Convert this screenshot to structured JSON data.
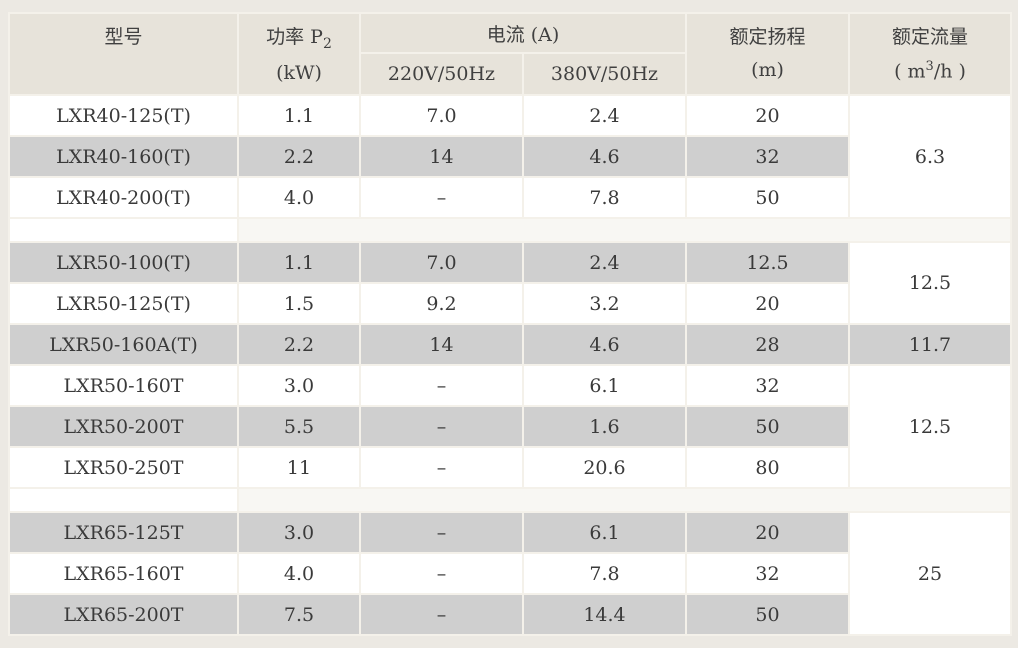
{
  "header": {
    "model": "型号",
    "power_label": "功率 P",
    "power_sub": "2",
    "power_unit": "(kW)",
    "current": "电流 (A)",
    "current_220": "220V/50Hz",
    "current_380": "380V/50Hz",
    "head_label": "额定扬程",
    "head_unit": "(m)",
    "flow_label": "额定流量",
    "flow_unit_open": "( m",
    "flow_unit_sup": "3",
    "flow_unit_close": "/h )"
  },
  "rows": [
    {
      "model": "LXR40-125(T)",
      "power": "1.1",
      "i220": "7.0",
      "i380": "2.4",
      "head": "20"
    },
    {
      "model": "LXR40-160(T)",
      "power": "2.2",
      "i220": "14",
      "i380": "4.6",
      "head": "32"
    },
    {
      "model": "LXR40-200(T)",
      "power": "4.0",
      "i220": "–",
      "i380": "7.8",
      "head": "50"
    },
    {
      "model": "LXR50-100(T)",
      "power": "1.1",
      "i220": "7.0",
      "i380": "2.4",
      "head": "12.5"
    },
    {
      "model": "LXR50-125(T)",
      "power": "1.5",
      "i220": "9.2",
      "i380": "3.2",
      "head": "20"
    },
    {
      "model": "LXR50-160A(T)",
      "power": "2.2",
      "i220": "14",
      "i380": "4.6",
      "head": "28"
    },
    {
      "model": "LXR50-160T",
      "power": "3.0",
      "i220": "–",
      "i380": "6.1",
      "head": "32"
    },
    {
      "model": "LXR50-200T",
      "power": "5.5",
      "i220": "–",
      "i380": "1.6",
      "head": "50"
    },
    {
      "model": "LXR50-250T",
      "power": "11",
      "i220": "–",
      "i380": "20.6",
      "head": "80"
    },
    {
      "model": "LXR65-125T",
      "power": "3.0",
      "i220": "–",
      "i380": "6.1",
      "head": "20"
    },
    {
      "model": "LXR65-160T",
      "power": "4.0",
      "i220": "–",
      "i380": "7.8",
      "head": "32"
    },
    {
      "model": "LXR65-200T",
      "power": "7.5",
      "i220": "–",
      "i380": "14.4",
      "head": "50"
    }
  ],
  "flows": {
    "g1": "6.3",
    "g2a": "12.5",
    "g2b": "11.7",
    "g2c": "12.5",
    "g3": "25"
  }
}
